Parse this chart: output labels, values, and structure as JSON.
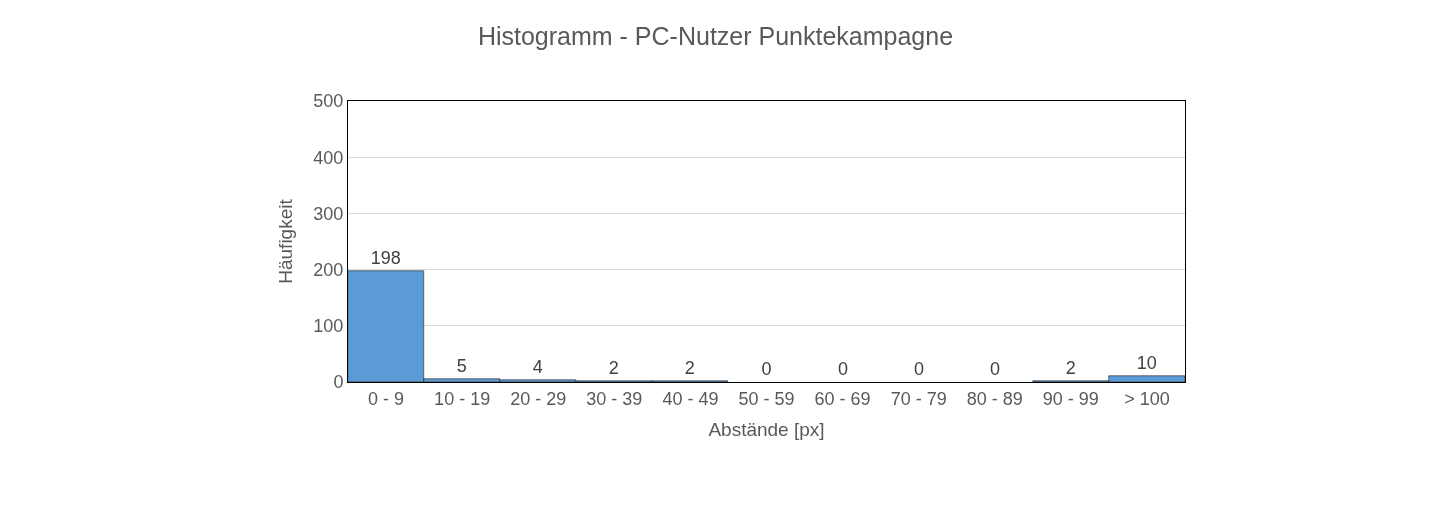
{
  "chart_data": {
    "type": "bar",
    "title": "Histogramm - PC-Nutzer Punktekampagne",
    "xlabel": "Abstände [px]",
    "ylabel": "Häufigkeit",
    "categories": [
      "0 - 9",
      "10 - 19",
      "20 - 29",
      "30 - 39",
      "40 - 49",
      "50 - 59",
      "60 - 69",
      "70 - 79",
      "80 - 89",
      "90 - 99",
      "> 100"
    ],
    "values": [
      198,
      5,
      4,
      2,
      2,
      0,
      0,
      0,
      0,
      2,
      10
    ],
    "color": "#5b9bd5",
    "ylim": [
      0,
      500
    ],
    "yticks": [
      0,
      100,
      200,
      300,
      400,
      500
    ],
    "grid": "y",
    "data_labels": true,
    "legend": false
  }
}
